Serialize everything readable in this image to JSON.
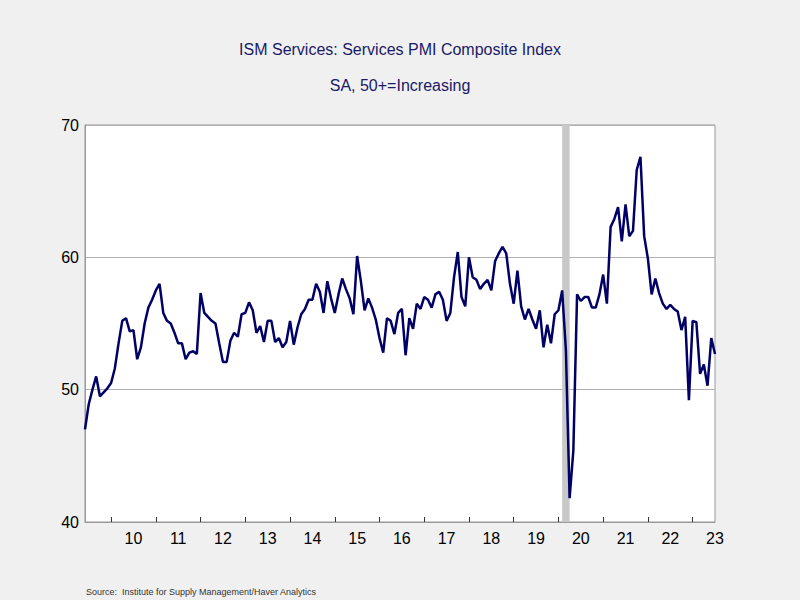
{
  "chart_data": {
    "type": "line",
    "title": "ISM Services: Services PMI Composite Index",
    "subtitle": "SA, 50+=Increasing",
    "source": "Source:  Institute for Supply Management/Haver Analytics",
    "categories": [
      null,
      null,
      null,
      null,
      null,
      null,
      null,
      null,
      null,
      null,
      null,
      null,
      null,
      "10",
      null,
      null,
      null,
      null,
      null,
      null,
      null,
      null,
      null,
      null,
      null,
      "11",
      null,
      null,
      null,
      null,
      null,
      null,
      null,
      null,
      null,
      null,
      null,
      "12",
      null,
      null,
      null,
      null,
      null,
      null,
      null,
      null,
      null,
      null,
      null,
      "13",
      null,
      null,
      null,
      null,
      null,
      null,
      null,
      null,
      null,
      null,
      null,
      "14",
      null,
      null,
      null,
      null,
      null,
      null,
      null,
      null,
      null,
      null,
      null,
      "15",
      null,
      null,
      null,
      null,
      null,
      null,
      null,
      null,
      null,
      null,
      null,
      "16",
      null,
      null,
      null,
      null,
      null,
      null,
      null,
      null,
      null,
      null,
      null,
      "17",
      null,
      null,
      null,
      null,
      null,
      null,
      null,
      null,
      null,
      null,
      null,
      "18",
      null,
      null,
      null,
      null,
      null,
      null,
      null,
      null,
      null,
      null,
      null,
      "19",
      null,
      null,
      null,
      null,
      null,
      null,
      null,
      null,
      null,
      null,
      null,
      "20",
      null,
      null,
      null,
      null,
      null,
      null,
      null,
      null,
      null,
      null,
      null,
      "21",
      null,
      null,
      null,
      null,
      null,
      null,
      null,
      null,
      null,
      null,
      null,
      "22",
      null,
      null,
      null,
      null,
      null,
      null,
      null,
      null,
      null,
      null,
      null,
      "23"
    ],
    "values": [
      47.0,
      48.9,
      50.0,
      51.0,
      49.5,
      49.8,
      50.1,
      50.5,
      51.6,
      53.5,
      55.2,
      55.4,
      54.4,
      54.5,
      52.3,
      53.2,
      55.0,
      56.2,
      56.8,
      57.5,
      58.0,
      55.8,
      55.2,
      55.0,
      54.3,
      53.5,
      53.5,
      52.3,
      52.8,
      52.9,
      52.7,
      57.3,
      55.8,
      55.5,
      55.2,
      55.0,
      53.5,
      52.1,
      52.1,
      53.7,
      54.3,
      54.0,
      55.7,
      55.8,
      56.6,
      56.0,
      54.3,
      54.8,
      53.6,
      55.2,
      55.2,
      53.6,
      53.9,
      53.2,
      53.6,
      55.2,
      53.4,
      54.7,
      55.7,
      56.1,
      56.8,
      56.8,
      58.0,
      57.4,
      55.8,
      58.2,
      56.9,
      55.8,
      57.2,
      58.4,
      57.6,
      56.9,
      55.7,
      60.1,
      58.2,
      56.0,
      56.9,
      56.2,
      55.3,
      53.9,
      52.8,
      55.4,
      55.2,
      54.2,
      55.8,
      56.1,
      52.6,
      55.4,
      54.6,
      56.5,
      56.1,
      57.0,
      56.8,
      56.2,
      57.2,
      57.4,
      56.8,
      55.2,
      55.8,
      58.5,
      60.4,
      57.0,
      56.3,
      60.0,
      58.5,
      58.3,
      57.6,
      58.0,
      58.3,
      57.5,
      59.7,
      60.3,
      60.8,
      60.3,
      58.0,
      56.5,
      59.0,
      56.3,
      55.3,
      56.1,
      55.3,
      54.6,
      56.0,
      53.2,
      54.9,
      53.5,
      55.7,
      56.0,
      57.5,
      53.0,
      41.8,
      45.4,
      57.2,
      56.7,
      57.0,
      57.0,
      56.2,
      56.2,
      57.2,
      58.7,
      56.5,
      62.3,
      62.9,
      63.8,
      61.2,
      64.0,
      61.6,
      62.0,
      66.6,
      67.6,
      61.6,
      59.9,
      57.2,
      58.4,
      57.3,
      56.5,
      56.1,
      56.4,
      56.1,
      55.9,
      54.5,
      55.5,
      49.2,
      55.2,
      55.1,
      51.2,
      51.9,
      50.3,
      53.9,
      52.7
    ],
    "color": "#000066",
    "shaded_ranges": [
      {
        "from": 128,
        "to": 130,
        "color": "#c8c8c8"
      }
    ],
    "ylim": [
      40,
      70
    ],
    "yticks": [
      40,
      50,
      60,
      70
    ],
    "grid": true
  }
}
